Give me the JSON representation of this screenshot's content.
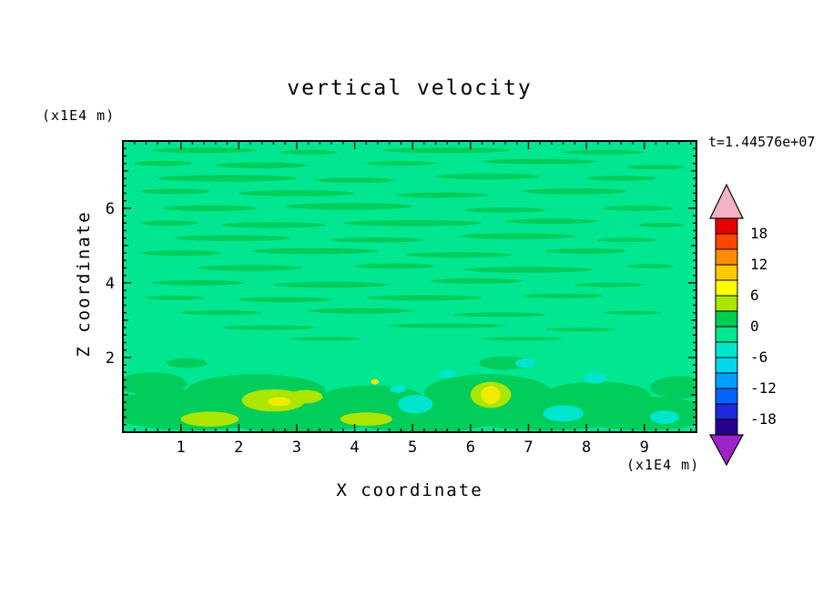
{
  "title": "vertical velocity",
  "time_label": "t=1.44576e+07",
  "x_axis": {
    "label": "X coordinate",
    "unit": "(x1E4 m)",
    "major_ticks": [
      1,
      2,
      3,
      4,
      5,
      6,
      7,
      8,
      9
    ],
    "range": [
      0,
      9.9
    ],
    "minor_step": 0.2
  },
  "y_axis": {
    "label": "Z coordinate",
    "unit": "(x1E4 m)",
    "labeled_ticks": [
      2,
      4,
      6
    ],
    "integer_ticks": [
      1,
      2,
      3,
      4,
      5,
      6,
      7
    ],
    "range": [
      0,
      7.8
    ],
    "minor_step": 0.2
  },
  "colorbar": {
    "labels": [
      "18",
      "12",
      "6",
      "0",
      "-6",
      "-12",
      "-18"
    ],
    "label_values": [
      18,
      12,
      6,
      0,
      -6,
      -12,
      -18
    ],
    "level_top": 21,
    "level_step": 3,
    "segment_colors_top_to_bottom": [
      "#e60000",
      "#ff4600",
      "#ff8c00",
      "#ffc800",
      "#ffff00",
      "#aae600",
      "#00cd50",
      "#00e691",
      "#00e6cd",
      "#00d7eb",
      "#00a0ff",
      "#0064ff",
      "#1e28dc",
      "#28008c"
    ],
    "arrow_top_color": "#f3b3c3",
    "arrow_bottom_color": "#a023c8"
  },
  "chart_data": {
    "type": "heatmap",
    "subtype": "filled-contour",
    "title": "vertical velocity",
    "xlabel": "X coordinate (x1E4 m)",
    "ylabel": "Z coordinate (x1E4 m)",
    "time_annotation": "t=1.44576e+07",
    "xlim": [
      0,
      9.9
    ],
    "ylim": [
      0,
      7.8
    ],
    "contour_interval": 3,
    "labeled_levels": [
      18,
      12,
      6,
      0,
      -6,
      -12,
      -18
    ],
    "background_level_color": "#00e691",
    "feature_colors": {
      "green": "#00cd5a",
      "yellow_green": "#aae600",
      "yellow": "#f0eb00",
      "cyan": "#00e6cd"
    },
    "features_format": [
      "x",
      "y",
      "rx",
      "ry"
    ],
    "features": {
      "green": [
        [
          1.4,
          7.55,
          0.9,
          0.07
        ],
        [
          3.2,
          7.5,
          0.5,
          0.06
        ],
        [
          5.6,
          7.55,
          1.1,
          0.07
        ],
        [
          8.3,
          7.5,
          0.7,
          0.06
        ],
        [
          0.7,
          7.2,
          0.5,
          0.07
        ],
        [
          2.4,
          7.15,
          0.8,
          0.08
        ],
        [
          4.8,
          7.2,
          0.6,
          0.06
        ],
        [
          7.2,
          7.25,
          1.0,
          0.07
        ],
        [
          9.2,
          7.1,
          0.5,
          0.06
        ],
        [
          1.8,
          6.8,
          1.2,
          0.09
        ],
        [
          4.0,
          6.75,
          0.7,
          0.07
        ],
        [
          6.3,
          6.85,
          0.9,
          0.08
        ],
        [
          8.6,
          6.8,
          0.6,
          0.07
        ],
        [
          0.9,
          6.45,
          0.6,
          0.07
        ],
        [
          3.0,
          6.4,
          1.0,
          0.08
        ],
        [
          5.5,
          6.35,
          0.8,
          0.07
        ],
        [
          7.8,
          6.45,
          0.9,
          0.08
        ],
        [
          1.5,
          6.0,
          0.8,
          0.08
        ],
        [
          3.9,
          6.05,
          1.1,
          0.09
        ],
        [
          6.6,
          5.95,
          0.7,
          0.07
        ],
        [
          8.9,
          6.0,
          0.6,
          0.07
        ],
        [
          0.8,
          5.6,
          0.5,
          0.07
        ],
        [
          2.6,
          5.55,
          0.9,
          0.08
        ],
        [
          5.0,
          5.6,
          1.2,
          0.08
        ],
        [
          7.4,
          5.65,
          0.8,
          0.07
        ],
        [
          9.3,
          5.55,
          0.4,
          0.06
        ],
        [
          1.9,
          5.2,
          1.0,
          0.08
        ],
        [
          4.4,
          5.15,
          0.8,
          0.07
        ],
        [
          6.8,
          5.25,
          1.0,
          0.08
        ],
        [
          8.7,
          5.15,
          0.5,
          0.06
        ],
        [
          1.0,
          4.8,
          0.7,
          0.07
        ],
        [
          3.3,
          4.85,
          1.1,
          0.08
        ],
        [
          5.8,
          4.75,
          0.9,
          0.07
        ],
        [
          8.0,
          4.85,
          0.7,
          0.07
        ],
        [
          2.2,
          4.4,
          0.9,
          0.08
        ],
        [
          4.7,
          4.45,
          0.7,
          0.07
        ],
        [
          7.0,
          4.35,
          1.1,
          0.08
        ],
        [
          9.1,
          4.45,
          0.4,
          0.06
        ],
        [
          1.3,
          4.0,
          0.8,
          0.07
        ],
        [
          3.6,
          3.95,
          1.0,
          0.08
        ],
        [
          6.1,
          4.05,
          0.8,
          0.07
        ],
        [
          8.4,
          3.95,
          0.6,
          0.06
        ],
        [
          0.9,
          3.6,
          0.5,
          0.06
        ],
        [
          2.8,
          3.55,
          0.8,
          0.07
        ],
        [
          5.2,
          3.6,
          1.0,
          0.07
        ],
        [
          7.6,
          3.65,
          0.7,
          0.06
        ],
        [
          1.7,
          3.2,
          0.7,
          0.06
        ],
        [
          4.1,
          3.25,
          0.9,
          0.07
        ],
        [
          6.5,
          3.15,
          0.8,
          0.06
        ],
        [
          8.8,
          3.2,
          0.5,
          0.05
        ],
        [
          2.5,
          2.8,
          0.8,
          0.06
        ],
        [
          5.6,
          2.85,
          1.0,
          0.06
        ],
        [
          7.9,
          2.75,
          0.6,
          0.05
        ],
        [
          3.5,
          2.5,
          0.6,
          0.05
        ],
        [
          6.9,
          2.5,
          0.7,
          0.05
        ],
        [
          1.2,
          0.6,
          1.5,
          0.55
        ],
        [
          3.0,
          0.5,
          1.6,
          0.5
        ],
        [
          5.2,
          0.45,
          1.4,
          0.45
        ],
        [
          7.3,
          0.55,
          1.6,
          0.5
        ],
        [
          9.0,
          0.5,
          1.2,
          0.45
        ],
        [
          2.3,
          1.1,
          1.2,
          0.45
        ],
        [
          6.3,
          1.05,
          1.1,
          0.5
        ],
        [
          4.3,
          0.9,
          0.9,
          0.35
        ],
        [
          8.2,
          1.0,
          0.9,
          0.35
        ],
        [
          0.5,
          1.3,
          0.6,
          0.3
        ],
        [
          9.6,
          1.2,
          0.5,
          0.3
        ],
        [
          6.6,
          1.85,
          0.45,
          0.18
        ],
        [
          1.1,
          1.85,
          0.35,
          0.13
        ]
      ],
      "yellow_green": [
        [
          2.6,
          0.85,
          0.55,
          0.3
        ],
        [
          6.35,
          1.0,
          0.35,
          0.35
        ],
        [
          1.5,
          0.35,
          0.5,
          0.2
        ],
        [
          4.2,
          0.35,
          0.45,
          0.18
        ],
        [
          3.15,
          0.95,
          0.3,
          0.18
        ]
      ],
      "cyan": [
        [
          5.05,
          0.75,
          0.3,
          0.25
        ],
        [
          7.6,
          0.5,
          0.35,
          0.22
        ],
        [
          8.15,
          1.45,
          0.2,
          0.15
        ],
        [
          9.35,
          0.4,
          0.25,
          0.18
        ],
        [
          6.95,
          1.85,
          0.18,
          0.12
        ],
        [
          5.6,
          1.55,
          0.15,
          0.1
        ],
        [
          4.75,
          1.15,
          0.14,
          0.1
        ]
      ],
      "yellow": [
        [
          6.35,
          1.0,
          0.17,
          0.24
        ],
        [
          2.7,
          0.82,
          0.2,
          0.12
        ],
        [
          4.35,
          1.35,
          0.07,
          0.07
        ]
      ]
    }
  }
}
